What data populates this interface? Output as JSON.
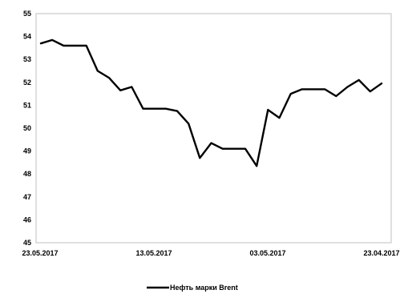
{
  "chart_data": {
    "type": "line",
    "title": "",
    "xlabel": "",
    "ylabel": "",
    "ylim": [
      45,
      55
    ],
    "y_ticks": [
      45,
      46,
      47,
      48,
      49,
      50,
      51,
      52,
      53,
      54,
      55
    ],
    "x_tick_labels": [
      "23.05.2017",
      "13.05.2017",
      "03.05.2017",
      "23.04.2017"
    ],
    "grid": false,
    "legend_position": "bottom",
    "line_color": "#000000",
    "series": [
      {
        "name": "Нефть марки Brent",
        "values": [
          53.7,
          53.85,
          53.6,
          53.6,
          53.6,
          52.5,
          52.2,
          51.65,
          51.8,
          50.85,
          50.85,
          50.85,
          50.75,
          50.2,
          48.7,
          49.35,
          49.1,
          49.1,
          49.1,
          48.35,
          50.8,
          50.45,
          51.5,
          51.7,
          51.7,
          51.7,
          51.4,
          51.8,
          52.1,
          51.6,
          51.95
        ]
      }
    ]
  }
}
